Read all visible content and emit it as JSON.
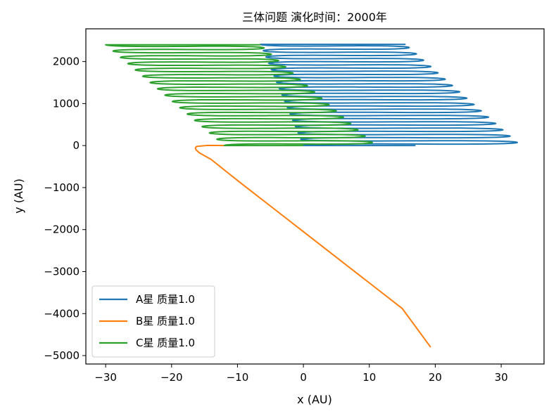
{
  "chart_data": {
    "type": "line",
    "title": "三体问题 演化时间：2000年",
    "xlabel": "x (AU)",
    "ylabel": "y (AU)",
    "xlim": [
      -33,
      36.5
    ],
    "ylim": [
      -5200,
      2780
    ],
    "xticks": [
      -30,
      -20,
      -10,
      0,
      10,
      20,
      30
    ],
    "yticks": [
      -5000,
      -4000,
      -3000,
      -2000,
      -1000,
      0,
      1000,
      2000
    ],
    "xtick_labels": [
      "−30",
      "−20",
      "−10",
      "0",
      "10",
      "20",
      "30"
    ],
    "ytick_labels": [
      "−5000",
      "−4000",
      "−3000",
      "−2000",
      "−1000",
      "0",
      "1000",
      "2000"
    ],
    "grid": false,
    "legend_position": "lower-left",
    "series": [
      {
        "name": "A星 质量1.0",
        "color": "#1f77b4",
        "oscillation": {
          "y_start": 0,
          "y_end": 2410,
          "cycles": 16,
          "left_start": 0,
          "left_end": -6.5,
          "right_start": 33,
          "right_end": 15.5,
          "start_x": 17,
          "end_x": 15.5
        }
      },
      {
        "name": "B星 质量1.0",
        "color": "#ff7f0e",
        "x": [
          -12,
          -14.5,
          -16.2,
          -16.4,
          -16.3,
          -15.8,
          -14,
          -10,
          -5,
          0,
          5,
          10,
          15,
          19.3
        ],
        "y": [
          0,
          5,
          -20,
          -60,
          -100,
          -170,
          -330,
          -830,
          -1440,
          -2050,
          -2660,
          -3270,
          -3880,
          -4800
        ]
      },
      {
        "name": "C星 质量1.0",
        "color": "#2ca02c",
        "oscillation": {
          "y_start": 0,
          "y_end": 2400,
          "cycles": 16,
          "left_start": -12,
          "left_end": -30,
          "right_start": 11,
          "right_end": -6.5,
          "start_x": 0,
          "end_x": -6.5
        }
      }
    ]
  }
}
